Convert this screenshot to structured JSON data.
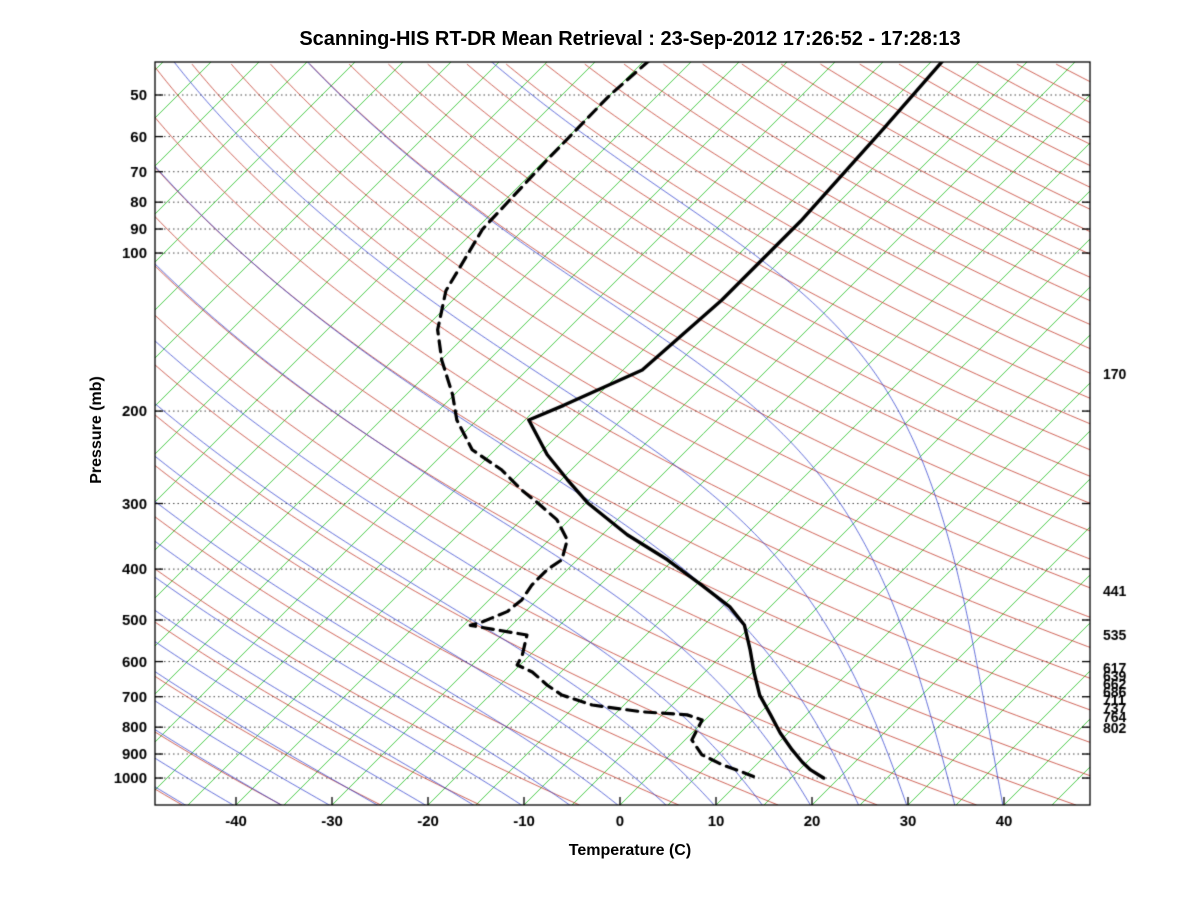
{
  "chart_data": {
    "type": "line",
    "variant": "skew-t-log-p",
    "title": "Scanning-HIS RT-DR Mean Retrieval : 23-Sep-2012 17:26:52 - 17:28:13",
    "xlabel": "Temperature (C)",
    "ylabel": "Pressure (mb)",
    "x_ticks_c": [
      -40,
      -30,
      -20,
      -10,
      0,
      10,
      20,
      30,
      40
    ],
    "y_ticks_mb": [
      50,
      60,
      70,
      80,
      90,
      100,
      200,
      300,
      400,
      500,
      600,
      700,
      800,
      900,
      1000
    ],
    "y_scale": "log",
    "x_axis_range_c": [
      -48,
      49
    ],
    "pressure_range_mb": [
      43,
      1126
    ],
    "skew_degrees": 45,
    "grid": "dotted-horizontal",
    "legend_position": "none",
    "right_pressure_labels_mb": [
      170,
      441,
      535,
      617,
      639,
      662,
      686,
      711,
      737,
      764,
      802
    ],
    "series": [
      {
        "name": "temperature",
        "line": "solid",
        "width": 3.4,
        "color": "#000000",
        "points_p_t": [
          [
            43,
            -43.9
          ],
          [
            58,
            -43.0
          ],
          [
            87,
            -42.0
          ],
          [
            123,
            -42.0
          ],
          [
            167,
            -43.0
          ],
          [
            195,
            -47.5
          ],
          [
            208,
            -49.6
          ],
          [
            242,
            -44.1
          ],
          [
            270,
            -39.4
          ],
          [
            300,
            -34.7
          ],
          [
            344,
            -27.4
          ],
          [
            384,
            -20.6
          ],
          [
            429,
            -14.4
          ],
          [
            472,
            -9.2
          ],
          [
            511,
            -5.8
          ],
          [
            570,
            -2.6
          ],
          [
            628,
            0.1
          ],
          [
            695,
            3.1
          ],
          [
            758,
            6.3
          ],
          [
            821,
            9.2
          ],
          [
            884,
            12.2
          ],
          [
            932,
            14.5
          ],
          [
            965,
            16.2
          ],
          [
            1000,
            18.4
          ]
        ]
      },
      {
        "name": "dewpoint",
        "line": "dashed",
        "width": 3.2,
        "color": "#000000",
        "points_p_t": [
          [
            43,
            -74.5
          ],
          [
            50,
            -75.0
          ],
          [
            66,
            -74.8
          ],
          [
            90,
            -74.3
          ],
          [
            118,
            -71.7
          ],
          [
            140,
            -68.5
          ],
          [
            160,
            -64.9
          ],
          [
            186,
            -60.2
          ],
          [
            208,
            -57.1
          ],
          [
            237,
            -52.4
          ],
          [
            259,
            -47.2
          ],
          [
            283,
            -43.0
          ],
          [
            300,
            -39.9
          ],
          [
            322,
            -36.3
          ],
          [
            352,
            -33.1
          ],
          [
            384,
            -31.6
          ],
          [
            401,
            -32.1
          ],
          [
            429,
            -32.1
          ],
          [
            458,
            -31.6
          ],
          [
            482,
            -31.9
          ],
          [
            504,
            -33.4
          ],
          [
            512,
            -34.3
          ],
          [
            534,
            -27.4
          ],
          [
            583,
            -25.8
          ],
          [
            609,
            -25.3
          ],
          [
            628,
            -23.0
          ],
          [
            665,
            -20.1
          ],
          [
            695,
            -17.5
          ],
          [
            726,
            -13.3
          ],
          [
            748,
            -7.4
          ],
          [
            758,
            -2.4
          ],
          [
            775,
            -0.3
          ],
          [
            810,
            0.2
          ],
          [
            846,
            0.7
          ],
          [
            903,
            3.3
          ],
          [
            944,
            6.5
          ],
          [
            974,
            9.3
          ],
          [
            1000,
            11.5
          ]
        ]
      }
    ],
    "reference_lines": {
      "isotherms": {
        "color": "#00b400",
        "t_from_c": -125,
        "t_to_c": 50,
        "step_c": 5
      },
      "dry_adiabats": {
        "color": "#bb2211",
        "theta_from_k": 210,
        "theta_to_k": 600,
        "step_k": 10
      },
      "moist_adiabats": {
        "color": "#2233cc",
        "start_t_from_c": -60,
        "start_t_to_c": 40,
        "step_c": 5
      },
      "pressure_gridlines": {
        "color": "#444444",
        "style": "dotted"
      }
    }
  }
}
